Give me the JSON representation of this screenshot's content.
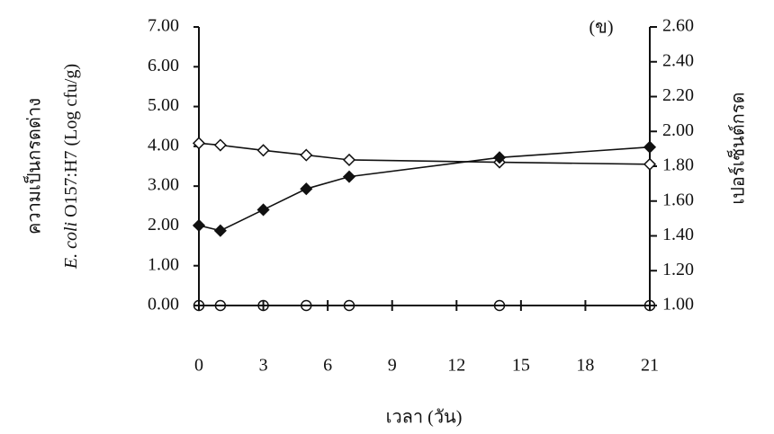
{
  "chart_data": {
    "type": "line",
    "annotation": "(ข)",
    "x_label": "เวลา (วัน)",
    "y_label_outer": "ความเป็นกรดด่าง",
    "y_label_italic": "E. coli",
    "y_label_rest": "O157:H7 (Log cfu/g)",
    "y2_label": "เปอร์เซ็นต์กรด",
    "x": [
      0,
      1,
      3,
      5,
      7,
      14,
      21
    ],
    "xlim": [
      0,
      21
    ],
    "xticks": [
      0,
      3,
      6,
      9,
      12,
      15,
      18,
      21
    ],
    "ylim": [
      0,
      7
    ],
    "yticks": [
      {
        "value": 0,
        "label": "0.00"
      },
      {
        "value": 1,
        "label": "1.00"
      },
      {
        "value": 2,
        "label": "2.00"
      },
      {
        "value": 3,
        "label": "3.00"
      },
      {
        "value": 4,
        "label": "4.00"
      },
      {
        "value": 5,
        "label": "5.00"
      },
      {
        "value": 6,
        "label": "6.00"
      },
      {
        "value": 7,
        "label": "7.00"
      }
    ],
    "y2lim": [
      1,
      2.6
    ],
    "y2ticks": [
      {
        "value": 1,
        "label": "1.00"
      },
      {
        "value": 1.2,
        "label": "1.20"
      },
      {
        "value": 1.4,
        "label": "1.40"
      },
      {
        "value": 1.6,
        "label": "1.60"
      },
      {
        "value": 1.8,
        "label": "1.80"
      },
      {
        "value": 2,
        "label": "2.00"
      },
      {
        "value": 2.2,
        "label": "2.20"
      },
      {
        "value": 2.4,
        "label": "2.40"
      },
      {
        "value": 2.6,
        "label": "2.60"
      }
    ],
    "series": [
      {
        "color": "#111111",
        "marker": "open-diamond",
        "values": [
          4.08,
          4.03,
          3.9,
          3.78,
          3.66,
          3.6,
          3.55
        ]
      },
      {
        "color": "#111111",
        "marker": "filled-diamond",
        "axis": "y2",
        "values": [
          1.46,
          1.43,
          1.55,
          1.67,
          1.74,
          1.85,
          1.91
        ]
      },
      {
        "color": "#111111",
        "marker": "open-circle",
        "values": [
          0,
          0,
          0,
          0,
          0,
          0,
          0
        ]
      }
    ]
  }
}
